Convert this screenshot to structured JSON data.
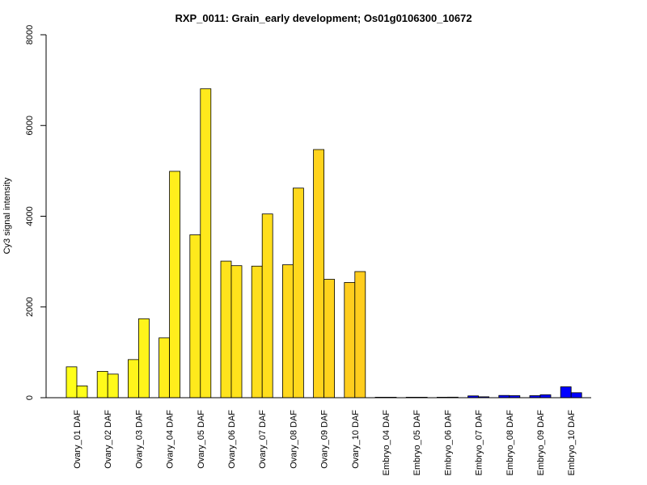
{
  "chart_data": {
    "type": "bar",
    "title": "RXP_0011: Grain_early development; Os01g0106300_10672",
    "xlabel": "",
    "ylabel": "Cy3 signal intensity",
    "ylim": [
      0,
      8000
    ],
    "yticks": [
      "0",
      "2000",
      "4000",
      "6000",
      "8000"
    ],
    "grid": false,
    "categories": [
      "Ovary_01 DAF",
      "Ovary_02 DAF",
      "Ovary_03 DAF",
      "Ovary_04 DAF",
      "Ovary_05 DAF",
      "Ovary_06 DAF",
      "Ovary_07 DAF",
      "Ovary_08 DAF",
      "Ovary_09 DAF",
      "Ovary_10 DAF",
      "Embryo_04 DAF",
      "Embryo_05 DAF",
      "Embryo_06 DAF",
      "Embryo_07 DAF",
      "Embryo_08 DAF",
      "Embryo_09 DAF",
      "Embryo_10 DAF"
    ],
    "series": [
      {
        "values": [
          680,
          580,
          840,
          1320,
          3590,
          3010,
          2900,
          2930,
          5470,
          2540,
          5,
          8,
          10,
          40,
          50,
          45,
          240
        ]
      },
      {
        "values": [
          260,
          520,
          1740,
          4990,
          6810,
          2910,
          4050,
          4620,
          2610,
          2780,
          5,
          8,
          12,
          20,
          45,
          65,
          110
        ]
      }
    ],
    "colors": [
      "#FFFF19",
      "#FFFA1A",
      "#FFF41B",
      "#FFEE1C",
      "#FFE91C",
      "#FFE31C",
      "#FFDE1D",
      "#FFD81D",
      "#FFD31D",
      "#FFCD1E",
      "#0000FF",
      "#0000FF",
      "#0000FF",
      "#0000FF",
      "#0000FF",
      "#0000FF",
      "#0000FF"
    ]
  }
}
